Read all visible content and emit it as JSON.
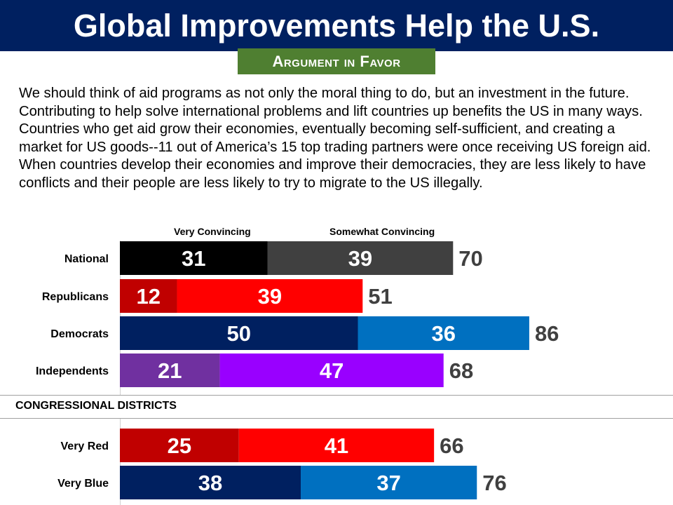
{
  "header": {
    "title": "Global Improvements Help the U.S.",
    "badge": "Argument in Favor"
  },
  "body_text": "We should think of aid programs as not only the moral thing to do, but an investment in the future.  Contributing to help solve international problems and lift countries up benefits the US in many ways.  Countries who get aid grow their economies, eventually becoming self-sufficient, and creating a market for US goods--11 out of America’s 15 top trading partners were once receiving US foreign aid.  When countries develop their economies and improve their democracies, they are less likely to have conflicts and their people are less likely to try to migrate to the US illegally.",
  "section_label": "CONGRESSIONAL DISTRICTS",
  "chart_data": {
    "type": "bar",
    "stacked": true,
    "orientation": "horizontal",
    "legend": [
      "Very Convincing",
      "Somewhat Convincing"
    ],
    "categories": [
      "National",
      "Republicans",
      "Democrats",
      "Independents",
      "Very Red",
      "Very Blue"
    ],
    "series": [
      {
        "name": "Very Convincing",
        "values": [
          31,
          12,
          50,
          21,
          25,
          38
        ],
        "colors": [
          "#000000",
          "#c00000",
          "#002060",
          "#7030a0",
          "#c00000",
          "#002060"
        ]
      },
      {
        "name": "Somewhat Convincing",
        "values": [
          39,
          39,
          36,
          47,
          41,
          37
        ],
        "colors": [
          "#404040",
          "#ff0000",
          "#0070c0",
          "#9900ff",
          "#ff0000",
          "#0070c0"
        ]
      }
    ],
    "totals": [
      70,
      51,
      86,
      68,
      66,
      76
    ],
    "xlim": [
      0,
      100
    ]
  }
}
